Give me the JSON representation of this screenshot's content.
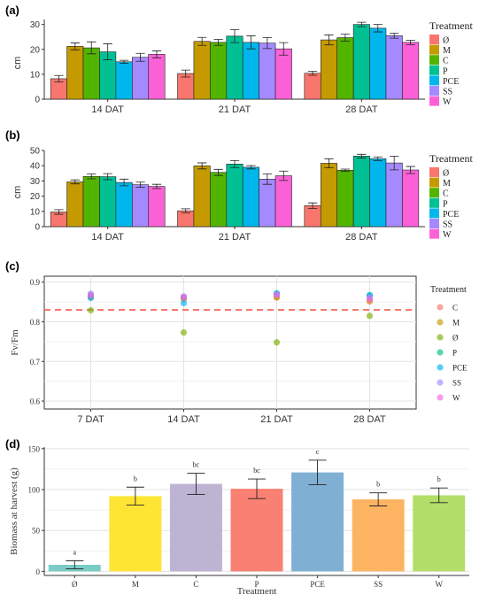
{
  "figure": {
    "panels": [
      {
        "label": "(a)"
      },
      {
        "label": "(b)"
      },
      {
        "label": "(c)"
      },
      {
        "label": "(d)"
      }
    ]
  },
  "colors": {
    "Ø": "#F8766D",
    "M": "#C49A00",
    "C": "#53B400",
    "P": "#00C094",
    "PCE": "#00B6EB",
    "SS": "#A58AFF",
    "W": "#FB61D7"
  },
  "chart_data": [
    {
      "type": "bar",
      "panel": "(a)",
      "ylabel": "cm",
      "ylim": [
        0,
        32
      ],
      "yticks": [
        0,
        10,
        20,
        30
      ],
      "grid": false,
      "categories": [
        "14 DAT",
        "21 DAT",
        "28 DAT"
      ],
      "legend_title": "Treatment",
      "legend_position": "right",
      "series": [
        {
          "name": "Ø",
          "values": [
            8.2,
            10.3,
            10.4
          ],
          "errors": [
            1.3,
            1.4,
            0.8
          ]
        },
        {
          "name": "M",
          "values": [
            21.2,
            23.2,
            23.8
          ],
          "errors": [
            1.4,
            1.6,
            2.0
          ]
        },
        {
          "name": "C",
          "values": [
            20.6,
            22.8,
            24.7
          ],
          "errors": [
            2.4,
            1.2,
            1.4
          ]
        },
        {
          "name": "P",
          "values": [
            19.0,
            25.3,
            30.0
          ],
          "errors": [
            3.2,
            2.6,
            0.9
          ]
        },
        {
          "name": "PCE",
          "values": [
            15.0,
            22.8,
            28.5
          ],
          "errors": [
            0.6,
            2.6,
            1.5
          ]
        },
        {
          "name": "SS",
          "values": [
            16.8,
            22.5,
            25.5
          ],
          "errors": [
            1.6,
            2.2,
            1.0
          ]
        },
        {
          "name": "W",
          "values": [
            18.0,
            20.2,
            22.8
          ],
          "errors": [
            1.4,
            2.5,
            0.9
          ]
        }
      ]
    },
    {
      "type": "bar",
      "panel": "(b)",
      "ylabel": "cm",
      "ylim": [
        0,
        50
      ],
      "yticks": [
        0,
        10,
        20,
        30,
        40,
        50
      ],
      "grid": false,
      "categories": [
        "14 DAT",
        "21 DAT",
        "28 DAT"
      ],
      "legend_title": "Treatment",
      "legend_position": "right",
      "series": [
        {
          "name": "Ø",
          "values": [
            9.6,
            10.4,
            13.8
          ],
          "errors": [
            1.5,
            1.3,
            1.8
          ]
        },
        {
          "name": "M",
          "values": [
            29.4,
            39.9,
            41.6
          ],
          "errors": [
            1.3,
            2.0,
            3.0
          ]
        },
        {
          "name": "C",
          "values": [
            33.0,
            35.6,
            37.0
          ],
          "errors": [
            1.6,
            2.0,
            0.8
          ]
        },
        {
          "name": "P",
          "values": [
            32.8,
            41.1,
            46.3
          ],
          "errors": [
            2.0,
            2.3,
            1.2
          ]
        },
        {
          "name": "PCE",
          "values": [
            29.0,
            39.0,
            44.6
          ],
          "errors": [
            2.2,
            1.1,
            1.2
          ]
        },
        {
          "name": "SS",
          "values": [
            27.5,
            31.2,
            41.8
          ],
          "errors": [
            1.7,
            3.4,
            4.5
          ]
        },
        {
          "name": "W",
          "values": [
            26.4,
            33.4,
            37.2
          ],
          "errors": [
            1.4,
            3.1,
            2.3
          ]
        }
      ]
    },
    {
      "type": "scatter",
      "panel": "(c)",
      "ylabel": "Fv/Fm",
      "ylim": [
        0.58,
        0.915
      ],
      "yticks": [
        0.6,
        0.7,
        0.8,
        0.9
      ],
      "grid": true,
      "categories": [
        "7 DAT",
        "14 DAT",
        "21 DAT",
        "28 DAT"
      ],
      "reference_line": 0.83,
      "legend_title": "Treatment",
      "legend_position": "right",
      "legend_order": [
        "C",
        "M",
        "Ø",
        "P",
        "PCE",
        "SS",
        "W"
      ],
      "series": [
        {
          "name": "Ø",
          "values": [
            0.829,
            0.773,
            0.748,
            0.815
          ]
        },
        {
          "name": "C",
          "values": [
            0.862,
            0.858,
            0.861,
            0.851
          ]
        },
        {
          "name": "M",
          "values": [
            0.863,
            0.859,
            0.862,
            0.854
          ]
        },
        {
          "name": "P",
          "values": [
            0.868,
            0.862,
            0.871,
            0.867
          ]
        },
        {
          "name": "PCE",
          "values": [
            0.86,
            0.847,
            0.872,
            0.867
          ]
        },
        {
          "name": "SS",
          "values": [
            0.871,
            0.864,
            0.869,
            0.862
          ]
        },
        {
          "name": "W",
          "values": [
            0.867,
            0.862,
            0.868,
            0.857
          ]
        }
      ]
    },
    {
      "type": "bar",
      "panel": "(d)",
      "ylabel": "Biomass at harvest (g)",
      "xlabel": "Treatment",
      "ylim": [
        -5,
        152
      ],
      "yticks": [
        0,
        50,
        100,
        150
      ],
      "grid": true,
      "categories": [
        "Ø",
        "M",
        "C",
        "P",
        "PCE",
        "SS",
        "W"
      ],
      "values": [
        8,
        92,
        107,
        101,
        121,
        88,
        93
      ],
      "errors": [
        5,
        11,
        13,
        12,
        15,
        8,
        9
      ],
      "letters": [
        "a",
        "b",
        "bc",
        "bc",
        "c",
        "b",
        "b"
      ],
      "bar_colors": [
        "#7ACCC4",
        "#FFE533",
        "#BDB4D4",
        "#F98072",
        "#7FB0D3",
        "#FDB462",
        "#B3DE69"
      ]
    }
  ]
}
